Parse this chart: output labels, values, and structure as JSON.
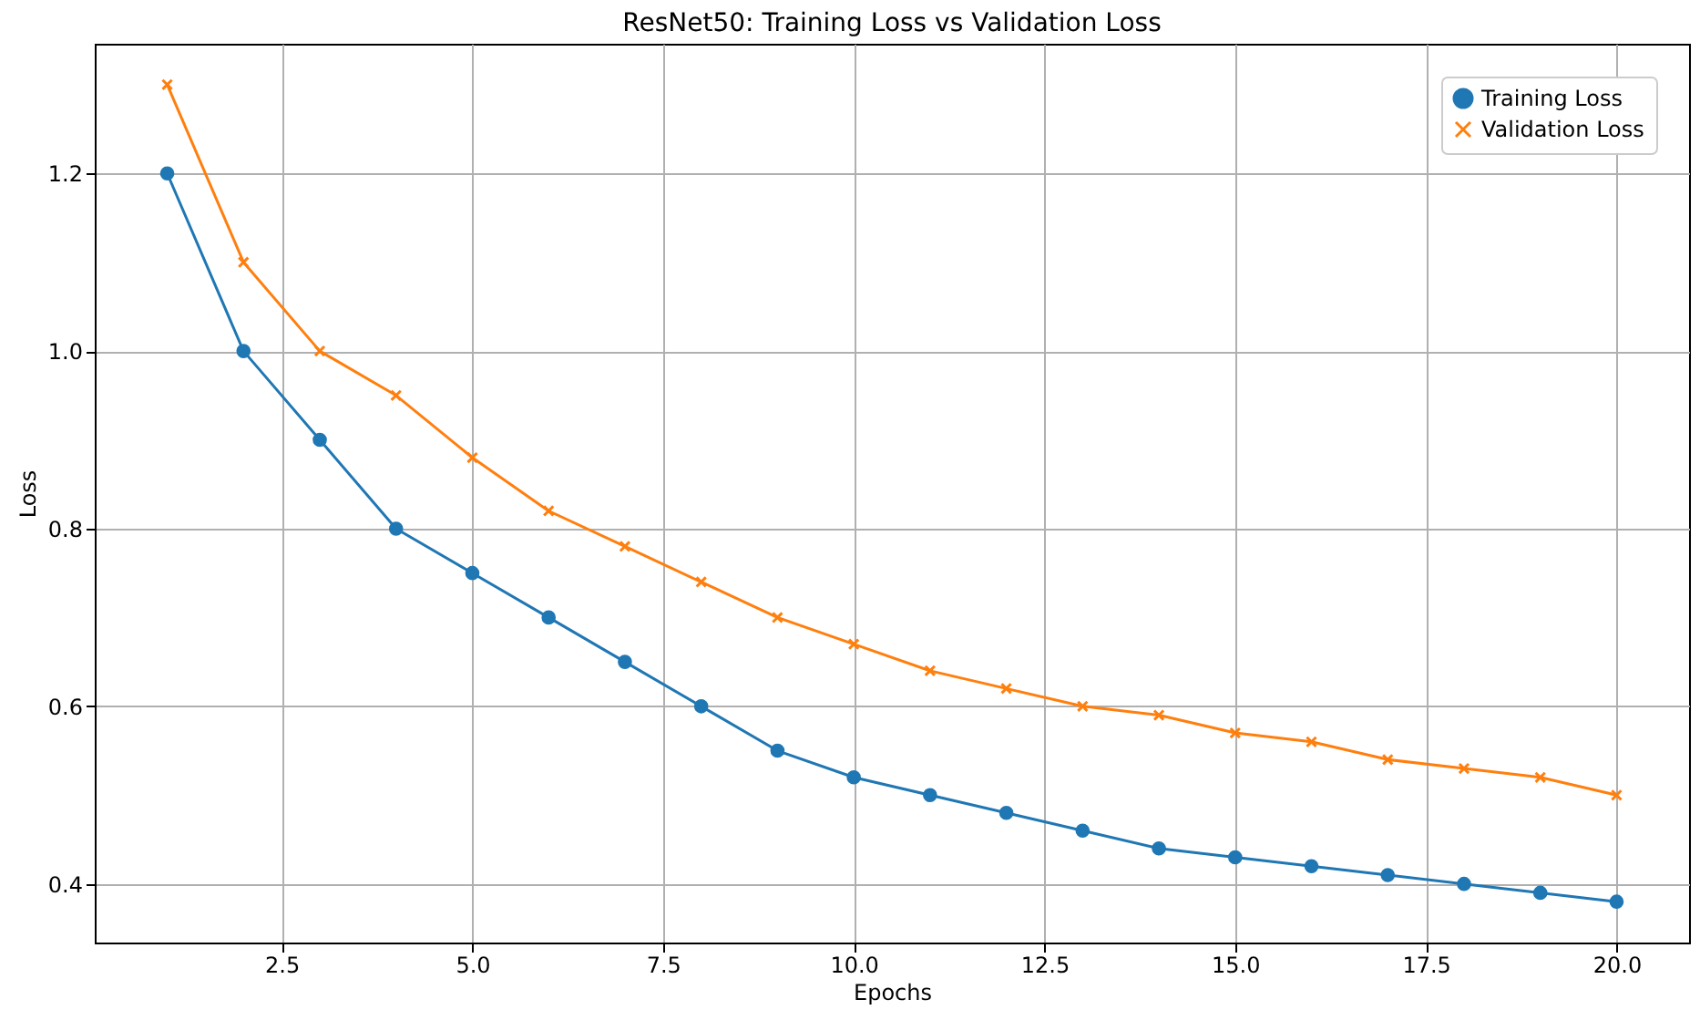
{
  "chart_data": {
    "type": "line",
    "title": "ResNet50: Training Loss vs Validation Loss",
    "xlabel": "Epochs",
    "ylabel": "Loss",
    "x": [
      1,
      2,
      3,
      4,
      5,
      6,
      7,
      8,
      9,
      10,
      11,
      12,
      13,
      14,
      15,
      16,
      17,
      18,
      19,
      20
    ],
    "series": [
      {
        "name": "Training Loss",
        "color": "#1f77b4",
        "marker": "circle",
        "values": [
          1.2,
          1.0,
          0.9,
          0.8,
          0.75,
          0.7,
          0.65,
          0.6,
          0.55,
          0.52,
          0.5,
          0.48,
          0.46,
          0.44,
          0.43,
          0.42,
          0.41,
          0.4,
          0.39,
          0.38
        ]
      },
      {
        "name": "Validation Loss",
        "color": "#ff7f0e",
        "marker": "cross",
        "values": [
          1.3,
          1.1,
          1.0,
          0.95,
          0.88,
          0.82,
          0.78,
          0.74,
          0.7,
          0.67,
          0.64,
          0.62,
          0.6,
          0.59,
          0.57,
          0.56,
          0.54,
          0.53,
          0.52,
          0.5
        ]
      }
    ],
    "xlim": [
      0.05,
      20.95
    ],
    "xticks": [
      {
        "value": 2.5,
        "label": "2.5"
      },
      {
        "value": 5,
        "label": "5.0"
      },
      {
        "value": 7.5,
        "label": "7.5"
      },
      {
        "value": 10,
        "label": "10.0"
      },
      {
        "value": 12.5,
        "label": "12.5"
      },
      {
        "value": 15,
        "label": "15.0"
      },
      {
        "value": 17.5,
        "label": "17.5"
      },
      {
        "value": 20,
        "label": "20.0"
      }
    ],
    "ylim": [
      0.334,
      1.346
    ],
    "yticks": [
      {
        "value": 0.4,
        "label": "0.4"
      },
      {
        "value": 0.6,
        "label": "0.6"
      },
      {
        "value": 0.8,
        "label": "0.8"
      },
      {
        "value": 1.0,
        "label": "1.0"
      },
      {
        "value": 1.2,
        "label": "1.2"
      }
    ],
    "grid": true,
    "legend": "top right",
    "line_style": "solid"
  }
}
